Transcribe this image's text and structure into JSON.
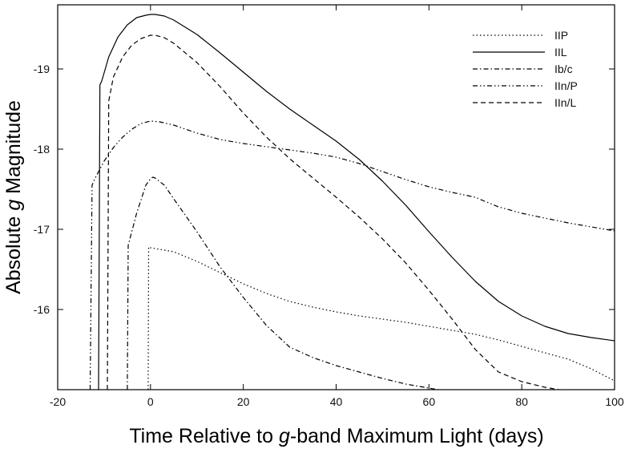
{
  "chart_data": {
    "type": "line",
    "title": "",
    "xlabel": {
      "prefix": "Time Relative to ",
      "italic": "g",
      "suffix": "-band Maximum Light (days)"
    },
    "ylabel": {
      "prefix": "Absolute ",
      "italic": "g",
      "suffix": " Magnitude"
    },
    "xlim": [
      -20,
      100
    ],
    "ylim": [
      -15,
      -19.8
    ],
    "y_inverted": true,
    "grid": false,
    "legend_position": "top-right",
    "xticks": [
      -20,
      0,
      20,
      40,
      60,
      80,
      100
    ],
    "yticks": [
      -16,
      -17,
      -18,
      -19
    ],
    "series": [
      {
        "name": "IIP",
        "dash": "dotted",
        "x": [
          -0.5,
          -0.4,
          0,
          5,
          10,
          15,
          20,
          25,
          30,
          35,
          40,
          45,
          50,
          55,
          60,
          65,
          70,
          75,
          80,
          85,
          90,
          95,
          100
        ],
        "y": [
          -15,
          -16.78,
          -16.77,
          -16.72,
          -16.6,
          -16.46,
          -16.32,
          -16.2,
          -16.1,
          -16.03,
          -15.97,
          -15.92,
          -15.88,
          -15.84,
          -15.79,
          -15.74,
          -15.69,
          -15.62,
          -15.54,
          -15.46,
          -15.38,
          -15.26,
          -15.11
        ]
      },
      {
        "name": "IIL",
        "dash": "solid",
        "x": [
          -11.2,
          -10.9,
          -10.5,
          -9,
          -7,
          -5,
          -3,
          -1,
          0,
          1,
          3,
          5,
          10,
          15,
          20,
          25,
          30,
          35,
          40,
          45,
          50,
          55,
          60,
          65,
          70,
          75,
          80,
          85,
          90,
          95,
          100
        ],
        "y": [
          -15,
          -18.8,
          -18.85,
          -19.15,
          -19.4,
          -19.55,
          -19.64,
          -19.67,
          -19.68,
          -19.68,
          -19.66,
          -19.61,
          -19.43,
          -19.2,
          -18.96,
          -18.72,
          -18.5,
          -18.3,
          -18.1,
          -17.87,
          -17.6,
          -17.3,
          -16.97,
          -16.65,
          -16.35,
          -16.1,
          -15.92,
          -15.79,
          -15.7,
          -15.65,
          -15.61
        ]
      },
      {
        "name": "Ib/c",
        "dash": "dashdot",
        "x": [
          -5,
          -4.8,
          -3,
          -1,
          0,
          0.5,
          1,
          3,
          5,
          10,
          15,
          20,
          25,
          30,
          35,
          40,
          45,
          50,
          55,
          60,
          62
        ],
        "y": [
          -15,
          -16.8,
          -17.2,
          -17.55,
          -17.63,
          -17.65,
          -17.64,
          -17.55,
          -17.38,
          -16.97,
          -16.53,
          -16.15,
          -15.8,
          -15.53,
          -15.4,
          -15.3,
          -15.22,
          -15.14,
          -15.07,
          -15.02,
          -15
        ]
      },
      {
        "name": "IIn/P",
        "dash": "dashdotdot",
        "x": [
          -13,
          -12.6,
          -12,
          -10,
          -8,
          -6,
          -4,
          -2,
          0,
          2,
          5,
          10,
          15,
          20,
          25,
          30,
          35,
          40,
          45,
          50,
          55,
          60,
          65,
          70,
          72,
          75,
          80,
          85,
          90,
          95,
          100
        ],
        "y": [
          -15,
          -17.55,
          -17.63,
          -17.85,
          -18.02,
          -18.15,
          -18.25,
          -18.32,
          -18.35,
          -18.34,
          -18.3,
          -18.2,
          -18.12,
          -18.07,
          -18.03,
          -17.99,
          -17.95,
          -17.9,
          -17.82,
          -17.72,
          -17.62,
          -17.53,
          -17.46,
          -17.4,
          -17.35,
          -17.28,
          -17.2,
          -17.14,
          -17.08,
          -17.03,
          -16.98
        ]
      },
      {
        "name": "IIn/L",
        "dash": "dashed",
        "x": [
          -9.3,
          -9,
          -8,
          -6,
          -4,
          -2,
          0,
          1,
          3,
          5,
          10,
          15,
          20,
          25,
          30,
          35,
          40,
          45,
          50,
          55,
          60,
          65,
          70,
          75,
          80,
          85,
          88
        ],
        "y": [
          -15,
          -18.6,
          -18.9,
          -19.15,
          -19.3,
          -19.38,
          -19.42,
          -19.42,
          -19.39,
          -19.32,
          -19.08,
          -18.78,
          -18.45,
          -18.15,
          -17.88,
          -17.64,
          -17.4,
          -17.15,
          -16.88,
          -16.58,
          -16.24,
          -15.88,
          -15.5,
          -15.22,
          -15.1,
          -15.03,
          -15
        ]
      }
    ]
  }
}
